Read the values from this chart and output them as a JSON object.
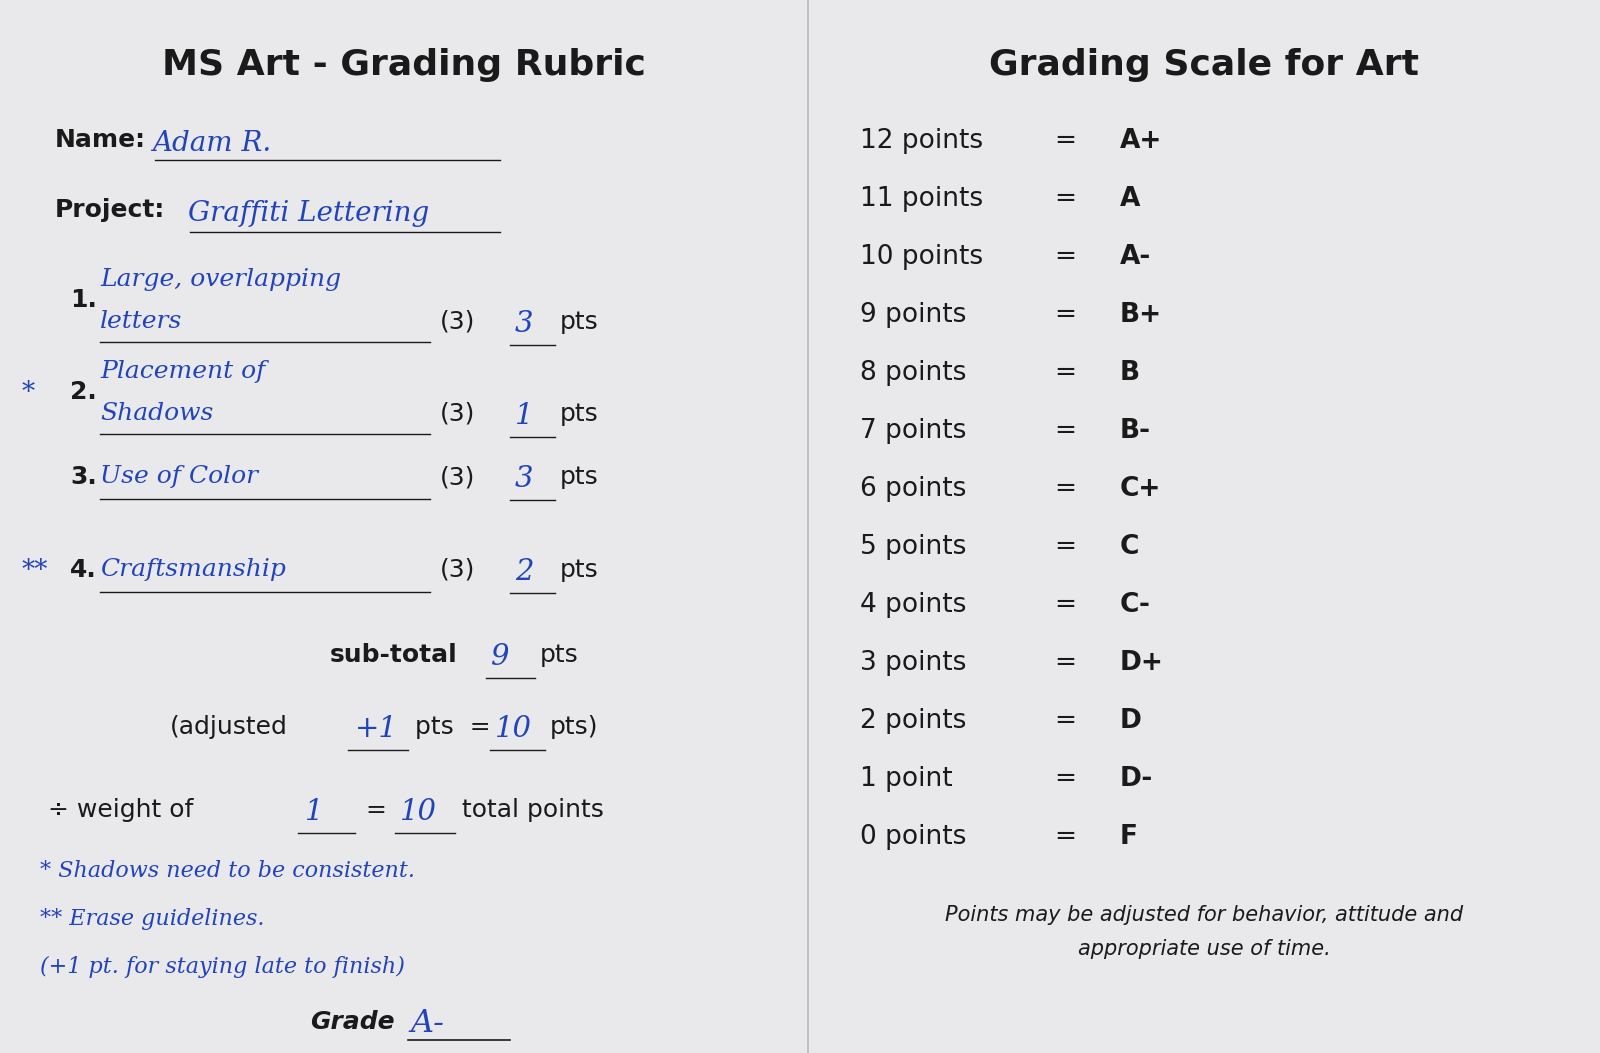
{
  "background_color": "#e9e9ec",
  "left_title": "MS Art - Grading Rubric",
  "right_title": "Grading Scale for Art",
  "name_label": "Name:",
  "name_value": "Adam R.",
  "project_label": "Project:",
  "project_value": "Graffiti Lettering",
  "criteria": [
    {
      "number": "1.",
      "prefix": "",
      "line1": "Large, overlapping",
      "line2": "letters",
      "max_pts": 3,
      "score": "3"
    },
    {
      "number": "2.",
      "prefix": "*",
      "line1": "Placement of",
      "line2": "Shadows",
      "max_pts": 3,
      "score": "1"
    },
    {
      "number": "3.",
      "prefix": "",
      "line1": "Use of Color",
      "line2": "",
      "max_pts": 3,
      "score": "3"
    },
    {
      "number": "4.",
      "prefix": "**",
      "line1": "Craftsmanship",
      "line2": "",
      "max_pts": 3,
      "score": "2"
    }
  ],
  "subtotal_value": "9",
  "adjusted_value": "+1",
  "adjusted_total": "10",
  "weight_value": "1",
  "weight_total": "10",
  "notes": [
    "* Shadows need to be consistent.",
    "** Erase guidelines.",
    "(+1 pt. for staying late to finish)"
  ],
  "grade_value": "A-",
  "scale_rows": [
    {
      "points": "12 points",
      "grade": "A+"
    },
    {
      "points": "11 points",
      "grade": "A"
    },
    {
      "points": "10 points",
      "grade": "A-"
    },
    {
      "points": "9 points",
      "grade": "B+"
    },
    {
      "points": "8 points",
      "grade": "B"
    },
    {
      "points": "7 points",
      "grade": "B-"
    },
    {
      "points": "6 points",
      "grade": "C+"
    },
    {
      "points": "5 points",
      "grade": "C"
    },
    {
      "points": "4 points",
      "grade": "C-"
    },
    {
      "points": "3 points",
      "grade": "D+"
    },
    {
      "points": "2 points",
      "grade": "D"
    },
    {
      "points": "1 point",
      "grade": "D-"
    },
    {
      "points": "0 points",
      "grade": "F"
    }
  ],
  "footnote_line1": "Points may be adjusted for behavior, attitude and",
  "footnote_line2": "appropriate use of time.",
  "text_black": "#1a1a1a",
  "text_blue": "#2244bb"
}
